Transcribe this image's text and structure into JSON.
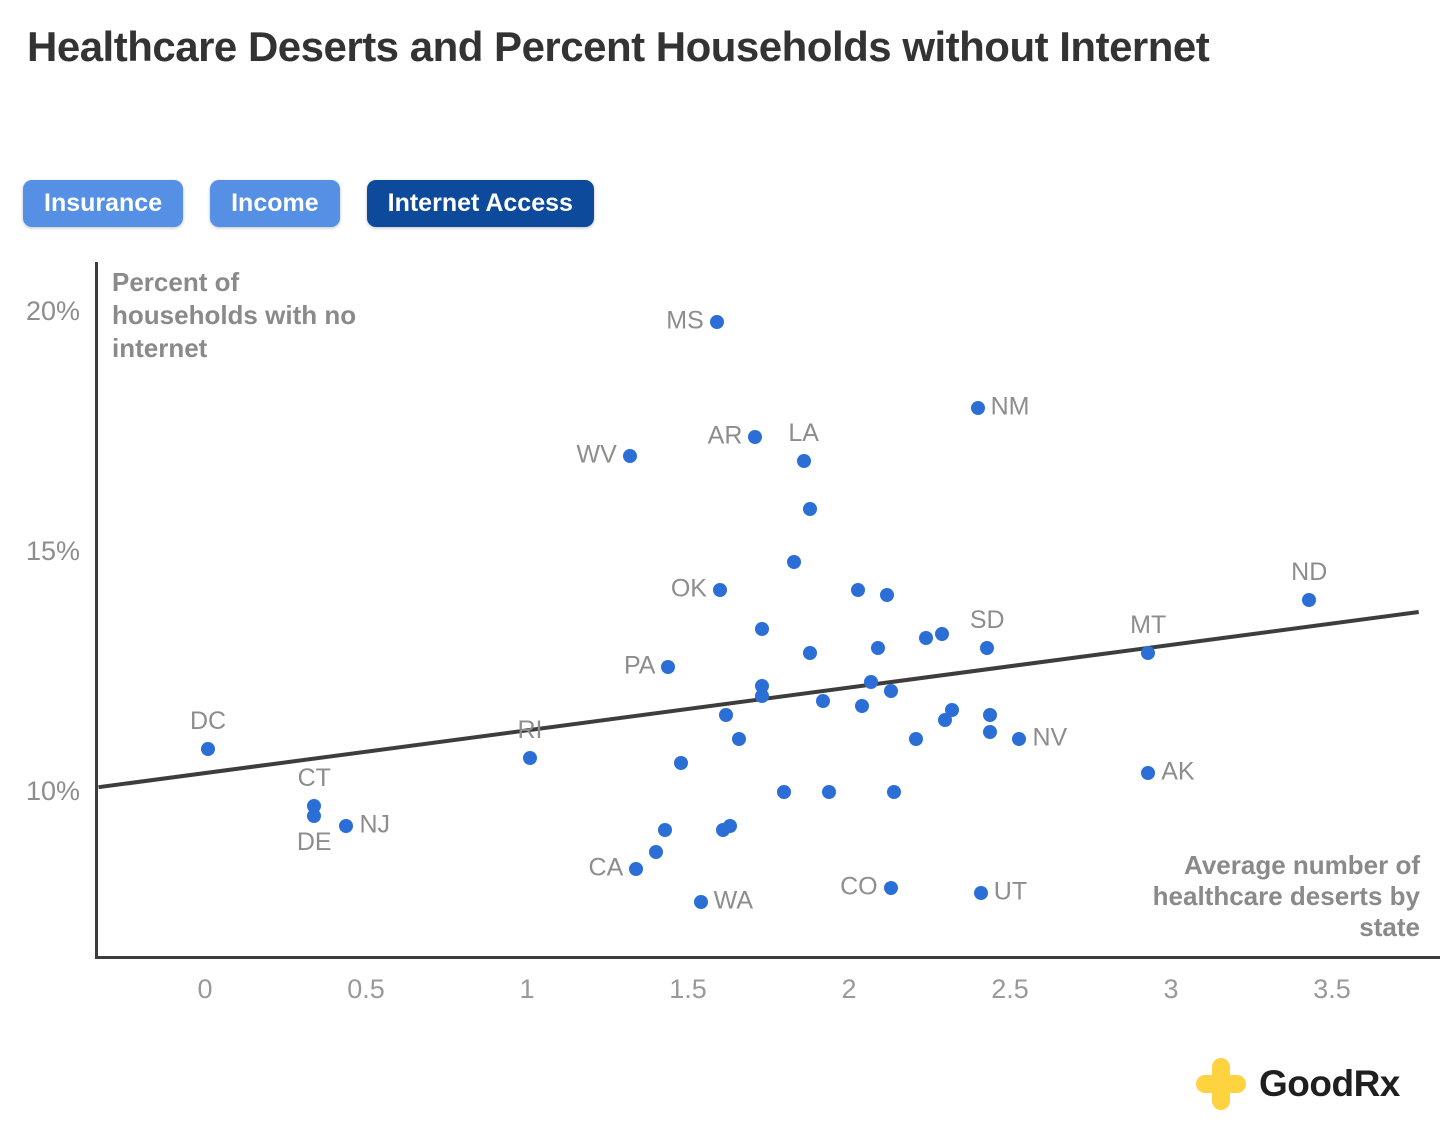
{
  "header": {
    "title": "Healthcare Deserts and Percent Households without Internet"
  },
  "toolbar": {
    "buttons": [
      {
        "label": "Insurance",
        "active": false
      },
      {
        "label": "Income",
        "active": false
      },
      {
        "label": "Internet Access",
        "active": true
      }
    ]
  },
  "colors": {
    "point_blue": "#2b6fd6",
    "button_light_blue": "#5590e4",
    "button_dark_blue": "#0d4a9c",
    "label_gray": "#8d8d8d",
    "axis_dark": "#3d3d3d",
    "logo_yellow": "#ffd33f"
  },
  "footer": {
    "logo_icon": "goodrx-plus-cross-icon",
    "logo_text": "GoodRx"
  },
  "chart_data": {
    "type": "scatter",
    "title": "Healthcare Deserts and Percent Households without Internet",
    "xlabel": "Average number of healthcare deserts by state",
    "ylabel": "Percent of households with no internet",
    "xlim": [
      -0.34,
      3.83
    ],
    "ylim": [
      6.6,
      21.0
    ],
    "grid": false,
    "legend": "none",
    "x_ticks": [
      {
        "value": 0,
        "label": "0"
      },
      {
        "value": 0.5,
        "label": "0.5"
      },
      {
        "value": 1,
        "label": "1"
      },
      {
        "value": 1.5,
        "label": "1.5"
      },
      {
        "value": 2,
        "label": "2"
      },
      {
        "value": 2.5,
        "label": "2.5"
      },
      {
        "value": 3,
        "label": "3"
      },
      {
        "value": 3.5,
        "label": "3.5"
      }
    ],
    "y_ticks": [
      {
        "value": 20,
        "label": "20%"
      },
      {
        "value": 15,
        "label": "15%"
      },
      {
        "value": 10,
        "label": "10%"
      }
    ],
    "trend_line": {
      "x1": -0.34,
      "y1": 10.1,
      "x2": 3.76,
      "y2": 13.75
    },
    "points": [
      {
        "state": "DC",
        "x": 0.0,
        "y": 10.9,
        "label_side": "above"
      },
      {
        "state": "CT",
        "x": 0.33,
        "y": 9.7,
        "label_side": "above"
      },
      {
        "state": "DE",
        "x": 0.33,
        "y": 9.5,
        "label_side": "below"
      },
      {
        "state": "NJ",
        "x": 0.43,
        "y": 9.3,
        "label_side": "right"
      },
      {
        "state": "RI",
        "x": 1.0,
        "y": 10.7,
        "label_side": "above"
      },
      {
        "state": "WV",
        "x": 1.31,
        "y": 17.0,
        "label_side": "left"
      },
      {
        "state": "CA",
        "x": 1.33,
        "y": 8.4,
        "label_side": "left"
      },
      {
        "state": "PA",
        "x": 1.43,
        "y": 12.6,
        "label_side": "left"
      },
      {
        "state": "WA",
        "x": 1.53,
        "y": 7.7,
        "label_side": "right"
      },
      {
        "state": "MS",
        "x": 1.58,
        "y": 19.8,
        "label_side": "left"
      },
      {
        "state": "OK",
        "x": 1.59,
        "y": 14.2,
        "label_side": "left"
      },
      {
        "state": "AR",
        "x": 1.7,
        "y": 17.4,
        "label_side": "left"
      },
      {
        "state": "LA",
        "x": 1.85,
        "y": 16.9,
        "label_side": "above"
      },
      {
        "state": "CO",
        "x": 2.12,
        "y": 8.0,
        "label_side": "left"
      },
      {
        "state": "NM",
        "x": 2.39,
        "y": 18.0,
        "label_side": "right"
      },
      {
        "state": "UT",
        "x": 2.4,
        "y": 7.9,
        "label_side": "right"
      },
      {
        "state": "SD",
        "x": 2.42,
        "y": 13.0,
        "label_side": "above"
      },
      {
        "state": "NV",
        "x": 2.52,
        "y": 11.1,
        "label_side": "right"
      },
      {
        "state": "MT",
        "x": 2.92,
        "y": 12.9,
        "label_side": "above"
      },
      {
        "state": "AK",
        "x": 2.92,
        "y": 10.4,
        "label_side": "right"
      },
      {
        "state": "ND",
        "x": 3.42,
        "y": 14.0,
        "label_side": "above"
      },
      {
        "state": "",
        "x": 1.87,
        "y": 15.9
      },
      {
        "state": "",
        "x": 1.82,
        "y": 14.8
      },
      {
        "state": "",
        "x": 2.02,
        "y": 14.2
      },
      {
        "state": "",
        "x": 2.11,
        "y": 14.1
      },
      {
        "state": "",
        "x": 1.72,
        "y": 13.4
      },
      {
        "state": "",
        "x": 2.28,
        "y": 13.3
      },
      {
        "state": "",
        "x": 2.23,
        "y": 13.2
      },
      {
        "state": "",
        "x": 2.08,
        "y": 13.0
      },
      {
        "state": "",
        "x": 1.87,
        "y": 12.9
      },
      {
        "state": "",
        "x": 2.06,
        "y": 12.3
      },
      {
        "state": "",
        "x": 1.72,
        "y": 12.2
      },
      {
        "state": "",
        "x": 1.72,
        "y": 12.0
      },
      {
        "state": "",
        "x": 2.12,
        "y": 12.1
      },
      {
        "state": "",
        "x": 1.91,
        "y": 11.9
      },
      {
        "state": "",
        "x": 2.03,
        "y": 11.8
      },
      {
        "state": "",
        "x": 2.31,
        "y": 11.7
      },
      {
        "state": "",
        "x": 2.43,
        "y": 11.6
      },
      {
        "state": "",
        "x": 1.61,
        "y": 11.6
      },
      {
        "state": "",
        "x": 2.29,
        "y": 11.5
      },
      {
        "state": "",
        "x": 2.43,
        "y": 11.25
      },
      {
        "state": "",
        "x": 2.2,
        "y": 11.1
      },
      {
        "state": "",
        "x": 1.65,
        "y": 11.1
      },
      {
        "state": "",
        "x": 1.47,
        "y": 10.6
      },
      {
        "state": "",
        "x": 1.79,
        "y": 10.0
      },
      {
        "state": "",
        "x": 1.93,
        "y": 10.0
      },
      {
        "state": "",
        "x": 2.13,
        "y": 10.0
      },
      {
        "state": "",
        "x": 1.62,
        "y": 9.3
      },
      {
        "state": "",
        "x": 1.42,
        "y": 9.2
      },
      {
        "state": "",
        "x": 1.6,
        "y": 9.2
      },
      {
        "state": "",
        "x": 1.39,
        "y": 8.75
      }
    ]
  }
}
